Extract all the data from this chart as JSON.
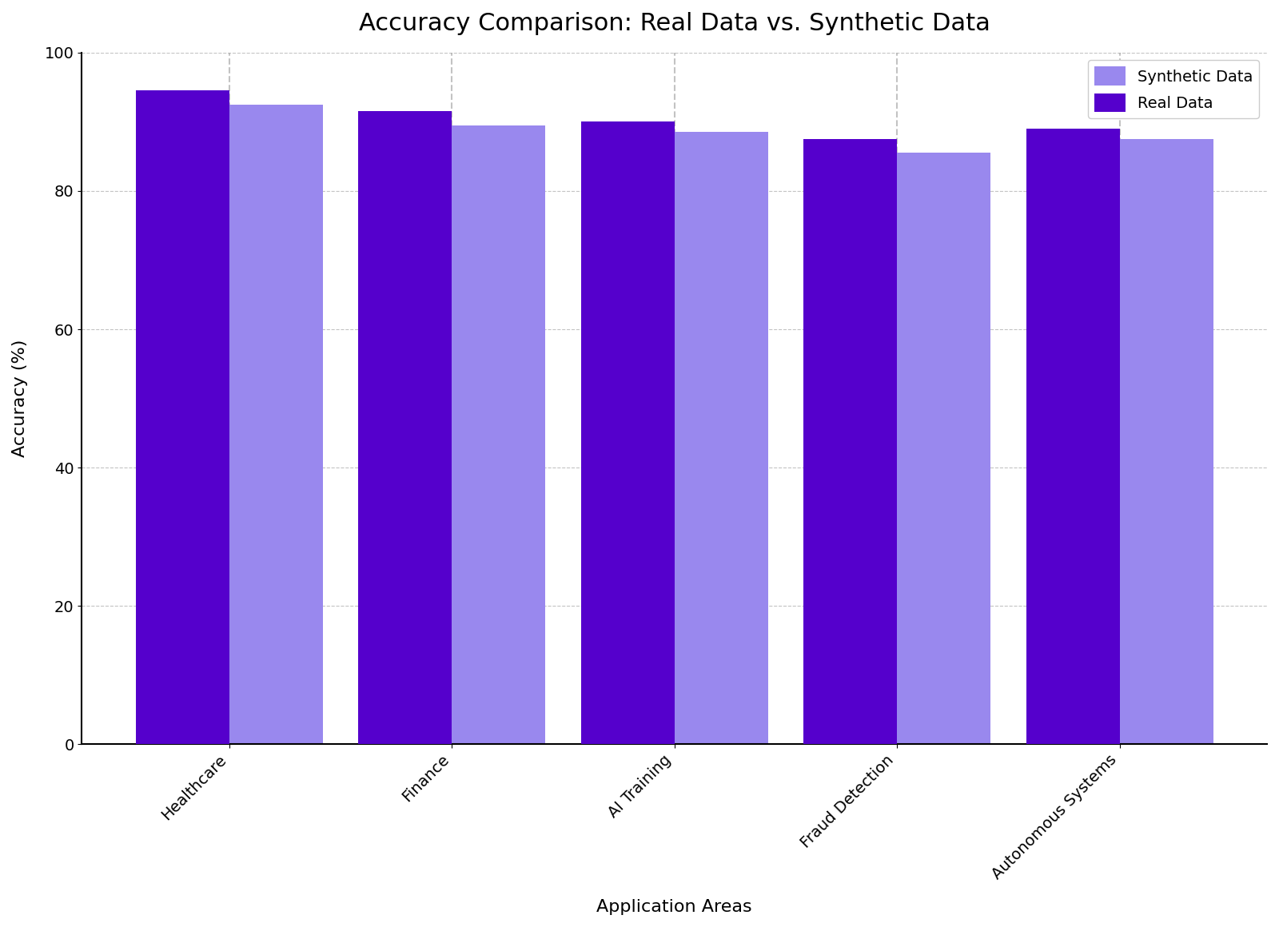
{
  "title": "Accuracy Comparison: Real Data vs. Synthetic Data",
  "categories": [
    "Healthcare",
    "Finance",
    "AI Training",
    "Fraud Detection",
    "Autonomous Systems"
  ],
  "real_data": [
    94.5,
    91.5,
    90.0,
    87.5,
    89.0
  ],
  "synthetic_data": [
    92.5,
    89.5,
    88.5,
    85.5,
    87.5
  ],
  "real_color": "#5500CC",
  "synthetic_color": "#9988EE",
  "xlabel": "Application Areas",
  "ylabel": "Accuracy (%)",
  "ylim": [
    0,
    100
  ],
  "yticks": [
    0,
    20,
    40,
    60,
    80,
    100
  ],
  "legend_labels": [
    "Real Data",
    "Synthetic Data"
  ],
  "bar_width": 0.42,
  "title_fontsize": 22,
  "label_fontsize": 16,
  "tick_fontsize": 14,
  "legend_fontsize": 14,
  "grid_color": "#aaaaaa",
  "grid_linestyle": "--",
  "grid_alpha": 0.7
}
